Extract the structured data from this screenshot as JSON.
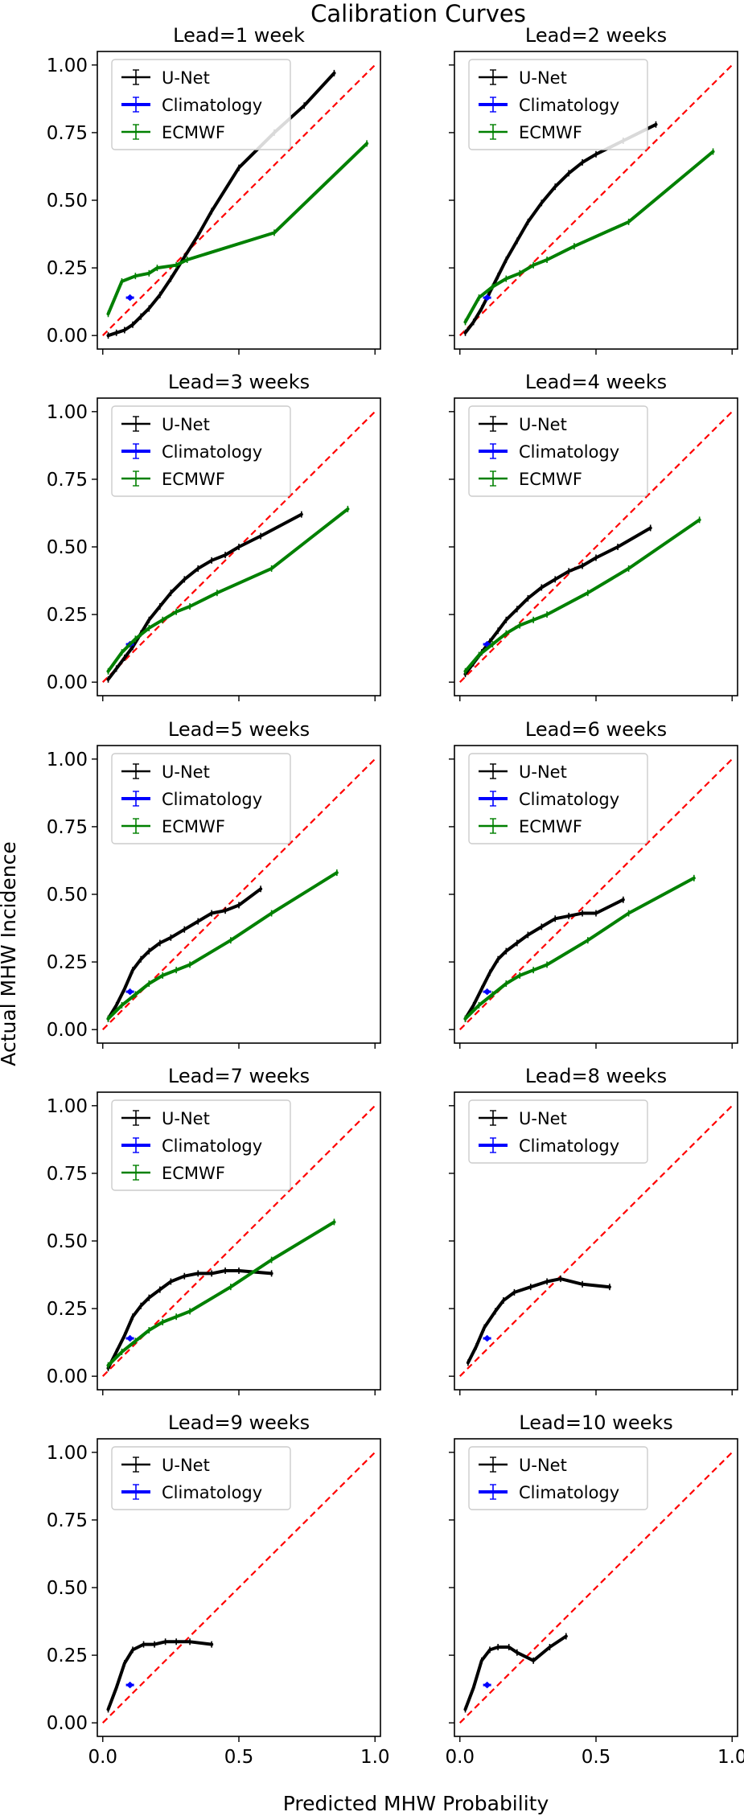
{
  "figure": {
    "suptitle": "Calibration Curves",
    "xlabel": "Predicted MHW Probability",
    "ylabel": "Actual MHW Incidence"
  },
  "colors": {
    "unet": "#000000",
    "climatology": "#0000ff",
    "ecmwf": "#008000",
    "diagonal": "#ff0000"
  },
  "chart_data": [
    {
      "type": "line",
      "title": "Lead=1 week",
      "xlim": [
        -0.02,
        1.02
      ],
      "ylim": [
        -0.05,
        1.05
      ],
      "xticks": [
        "0.0",
        "0.5",
        "1.0"
      ],
      "yticks": [
        "0.00",
        "0.25",
        "0.50",
        "0.75",
        "1.00"
      ],
      "legend": [
        "U-Net",
        "Climatology",
        "ECMWF"
      ],
      "legend_loc": "upper-left",
      "series": [
        {
          "name": "U-Net",
          "x": [
            0.02,
            0.05,
            0.08,
            0.11,
            0.14,
            0.17,
            0.21,
            0.25,
            0.3,
            0.35,
            0.4,
            0.5,
            0.63,
            0.74,
            0.85
          ],
          "y": [
            0.0,
            0.01,
            0.02,
            0.04,
            0.07,
            0.1,
            0.15,
            0.21,
            0.29,
            0.37,
            0.46,
            0.62,
            0.75,
            0.85,
            0.97
          ]
        },
        {
          "name": "Climatology",
          "x": [
            0.1
          ],
          "y": [
            0.14
          ]
        },
        {
          "name": "ECMWF",
          "x": [
            0.02,
            0.07,
            0.12,
            0.17,
            0.2,
            0.27,
            0.31,
            0.63,
            0.97
          ],
          "y": [
            0.08,
            0.2,
            0.22,
            0.23,
            0.25,
            0.26,
            0.28,
            0.38,
            0.71
          ]
        }
      ]
    },
    {
      "type": "line",
      "title": "Lead=2 weeks",
      "xlim": [
        -0.02,
        1.02
      ],
      "ylim": [
        -0.05,
        1.05
      ],
      "xticks": [
        "0.0",
        "0.5",
        "1.0"
      ],
      "yticks": [
        "0.00",
        "0.25",
        "0.50",
        "0.75",
        "1.00"
      ],
      "legend": [
        "U-Net",
        "Climatology",
        "ECMWF"
      ],
      "legend_loc": "upper-left",
      "series": [
        {
          "name": "U-Net",
          "x": [
            0.02,
            0.05,
            0.08,
            0.11,
            0.14,
            0.17,
            0.21,
            0.25,
            0.3,
            0.35,
            0.4,
            0.45,
            0.5,
            0.6,
            0.72
          ],
          "y": [
            0.01,
            0.05,
            0.1,
            0.16,
            0.22,
            0.28,
            0.35,
            0.42,
            0.49,
            0.55,
            0.6,
            0.64,
            0.67,
            0.72,
            0.78
          ]
        },
        {
          "name": "Climatology",
          "x": [
            0.1
          ],
          "y": [
            0.14
          ]
        },
        {
          "name": "ECMWF",
          "x": [
            0.02,
            0.07,
            0.12,
            0.17,
            0.22,
            0.27,
            0.32,
            0.42,
            0.62,
            0.93
          ],
          "y": [
            0.05,
            0.14,
            0.18,
            0.21,
            0.23,
            0.26,
            0.28,
            0.33,
            0.42,
            0.68
          ]
        }
      ]
    },
    {
      "type": "line",
      "title": "Lead=3 weeks",
      "xlim": [
        -0.02,
        1.02
      ],
      "ylim": [
        -0.05,
        1.05
      ],
      "xticks": [
        "0.0",
        "0.5",
        "1.0"
      ],
      "yticks": [
        "0.00",
        "0.25",
        "0.50",
        "0.75",
        "1.00"
      ],
      "legend": [
        "U-Net",
        "Climatology",
        "ECMWF"
      ],
      "legend_loc": "upper-left",
      "series": [
        {
          "name": "U-Net",
          "x": [
            0.02,
            0.05,
            0.08,
            0.11,
            0.14,
            0.17,
            0.21,
            0.25,
            0.3,
            0.35,
            0.4,
            0.45,
            0.5,
            0.58,
            0.73
          ],
          "y": [
            0.01,
            0.05,
            0.09,
            0.13,
            0.18,
            0.23,
            0.28,
            0.33,
            0.38,
            0.42,
            0.45,
            0.47,
            0.5,
            0.54,
            0.62
          ]
        },
        {
          "name": "Climatology",
          "x": [
            0.1
          ],
          "y": [
            0.14
          ]
        },
        {
          "name": "ECMWF",
          "x": [
            0.02,
            0.07,
            0.12,
            0.17,
            0.22,
            0.27,
            0.32,
            0.42,
            0.62,
            0.9
          ],
          "y": [
            0.04,
            0.11,
            0.16,
            0.2,
            0.23,
            0.26,
            0.28,
            0.33,
            0.42,
            0.64
          ]
        }
      ]
    },
    {
      "type": "line",
      "title": "Lead=4 weeks",
      "xlim": [
        -0.02,
        1.02
      ],
      "ylim": [
        -0.05,
        1.05
      ],
      "xticks": [
        "0.0",
        "0.5",
        "1.0"
      ],
      "yticks": [
        "0.00",
        "0.25",
        "0.50",
        "0.75",
        "1.00"
      ],
      "legend": [
        "U-Net",
        "Climatology",
        "ECMWF"
      ],
      "legend_loc": "upper-left",
      "series": [
        {
          "name": "U-Net",
          "x": [
            0.02,
            0.05,
            0.08,
            0.11,
            0.14,
            0.17,
            0.21,
            0.25,
            0.3,
            0.35,
            0.4,
            0.45,
            0.5,
            0.58,
            0.7
          ],
          "y": [
            0.03,
            0.07,
            0.11,
            0.15,
            0.19,
            0.23,
            0.27,
            0.31,
            0.35,
            0.38,
            0.41,
            0.43,
            0.46,
            0.5,
            0.57
          ]
        },
        {
          "name": "Climatology",
          "x": [
            0.1
          ],
          "y": [
            0.14
          ]
        },
        {
          "name": "ECMWF",
          "x": [
            0.02,
            0.07,
            0.12,
            0.17,
            0.22,
            0.27,
            0.32,
            0.47,
            0.62,
            0.88
          ],
          "y": [
            0.04,
            0.1,
            0.14,
            0.18,
            0.21,
            0.23,
            0.25,
            0.33,
            0.42,
            0.6
          ]
        }
      ]
    },
    {
      "type": "line",
      "title": "Lead=5 weeks",
      "xlim": [
        -0.02,
        1.02
      ],
      "ylim": [
        -0.05,
        1.05
      ],
      "xticks": [
        "0.0",
        "0.5",
        "1.0"
      ],
      "yticks": [
        "0.00",
        "0.25",
        "0.50",
        "0.75",
        "1.00"
      ],
      "legend": [
        "U-Net",
        "Climatology",
        "ECMWF"
      ],
      "legend_loc": "upper-left",
      "series": [
        {
          "name": "U-Net",
          "x": [
            0.02,
            0.05,
            0.08,
            0.11,
            0.14,
            0.17,
            0.21,
            0.25,
            0.3,
            0.35,
            0.4,
            0.45,
            0.5,
            0.58
          ],
          "y": [
            0.04,
            0.09,
            0.15,
            0.22,
            0.26,
            0.29,
            0.32,
            0.34,
            0.37,
            0.4,
            0.43,
            0.44,
            0.46,
            0.52
          ]
        },
        {
          "name": "Climatology",
          "x": [
            0.1
          ],
          "y": [
            0.14
          ]
        },
        {
          "name": "ECMWF",
          "x": [
            0.02,
            0.07,
            0.12,
            0.17,
            0.22,
            0.27,
            0.32,
            0.47,
            0.62,
            0.86
          ],
          "y": [
            0.04,
            0.09,
            0.13,
            0.17,
            0.2,
            0.22,
            0.24,
            0.33,
            0.43,
            0.58
          ]
        }
      ]
    },
    {
      "type": "line",
      "title": "Lead=6 weeks",
      "xlim": [
        -0.02,
        1.02
      ],
      "ylim": [
        -0.05,
        1.05
      ],
      "xticks": [
        "0.0",
        "0.5",
        "1.0"
      ],
      "yticks": [
        "0.00",
        "0.25",
        "0.50",
        "0.75",
        "1.00"
      ],
      "legend": [
        "U-Net",
        "Climatology",
        "ECMWF"
      ],
      "legend_loc": "upper-left",
      "series": [
        {
          "name": "U-Net",
          "x": [
            0.02,
            0.05,
            0.08,
            0.11,
            0.14,
            0.17,
            0.21,
            0.25,
            0.3,
            0.35,
            0.4,
            0.45,
            0.5,
            0.6
          ],
          "y": [
            0.04,
            0.09,
            0.15,
            0.21,
            0.26,
            0.29,
            0.32,
            0.35,
            0.38,
            0.41,
            0.42,
            0.43,
            0.43,
            0.48
          ]
        },
        {
          "name": "Climatology",
          "x": [
            0.1
          ],
          "y": [
            0.14
          ]
        },
        {
          "name": "ECMWF",
          "x": [
            0.02,
            0.07,
            0.12,
            0.17,
            0.22,
            0.27,
            0.32,
            0.47,
            0.62,
            0.86
          ],
          "y": [
            0.04,
            0.09,
            0.13,
            0.17,
            0.2,
            0.22,
            0.24,
            0.33,
            0.43,
            0.56
          ]
        }
      ]
    },
    {
      "type": "line",
      "title": "Lead=7 weeks",
      "xlim": [
        -0.02,
        1.02
      ],
      "ylim": [
        -0.05,
        1.05
      ],
      "xticks": [
        "0.0",
        "0.5",
        "1.0"
      ],
      "yticks": [
        "0.00",
        "0.25",
        "0.50",
        "0.75",
        "1.00"
      ],
      "legend": [
        "U-Net",
        "Climatology",
        "ECMWF"
      ],
      "legend_loc": "upper-left",
      "series": [
        {
          "name": "U-Net",
          "x": [
            0.02,
            0.05,
            0.08,
            0.11,
            0.14,
            0.17,
            0.21,
            0.25,
            0.3,
            0.35,
            0.4,
            0.45,
            0.5,
            0.62
          ],
          "y": [
            0.03,
            0.09,
            0.15,
            0.22,
            0.26,
            0.29,
            0.32,
            0.35,
            0.37,
            0.38,
            0.38,
            0.39,
            0.39,
            0.38
          ]
        },
        {
          "name": "Climatology",
          "x": [
            0.1
          ],
          "y": [
            0.14
          ]
        },
        {
          "name": "ECMWF",
          "x": [
            0.02,
            0.07,
            0.12,
            0.17,
            0.22,
            0.27,
            0.32,
            0.47,
            0.62,
            0.85
          ],
          "y": [
            0.04,
            0.09,
            0.13,
            0.17,
            0.2,
            0.22,
            0.24,
            0.33,
            0.43,
            0.57
          ]
        }
      ]
    },
    {
      "type": "line",
      "title": "Lead=8 weeks",
      "xlim": [
        -0.02,
        1.02
      ],
      "ylim": [
        -0.05,
        1.05
      ],
      "xticks": [
        "0.0",
        "0.5",
        "1.0"
      ],
      "yticks": [
        "0.00",
        "0.25",
        "0.50",
        "0.75",
        "1.00"
      ],
      "legend": [
        "U-Net",
        "Climatology"
      ],
      "legend_loc": "upper-left",
      "series": [
        {
          "name": "U-Net",
          "x": [
            0.03,
            0.06,
            0.09,
            0.13,
            0.16,
            0.2,
            0.26,
            0.32,
            0.37,
            0.45,
            0.55
          ],
          "y": [
            0.05,
            0.11,
            0.18,
            0.24,
            0.28,
            0.31,
            0.33,
            0.35,
            0.36,
            0.34,
            0.33
          ]
        },
        {
          "name": "Climatology",
          "x": [
            0.1
          ],
          "y": [
            0.14
          ]
        }
      ]
    },
    {
      "type": "line",
      "title": "Lead=9 weeks",
      "xlim": [
        -0.02,
        1.02
      ],
      "ylim": [
        -0.05,
        1.05
      ],
      "xticks": [
        "0.0",
        "0.5",
        "1.0"
      ],
      "yticks": [
        "0.00",
        "0.25",
        "0.50",
        "0.75",
        "1.00"
      ],
      "legend": [
        "U-Net",
        "Climatology"
      ],
      "legend_loc": "upper-left",
      "series": [
        {
          "name": "U-Net",
          "x": [
            0.02,
            0.05,
            0.08,
            0.11,
            0.15,
            0.19,
            0.23,
            0.27,
            0.32,
            0.4
          ],
          "y": [
            0.05,
            0.13,
            0.22,
            0.27,
            0.29,
            0.29,
            0.3,
            0.3,
            0.3,
            0.29
          ]
        },
        {
          "name": "Climatology",
          "x": [
            0.1
          ],
          "y": [
            0.14
          ]
        }
      ]
    },
    {
      "type": "line",
      "title": "Lead=10 weeks",
      "xlim": [
        -0.02,
        1.02
      ],
      "ylim": [
        -0.05,
        1.05
      ],
      "xticks": [
        "0.0",
        "0.5",
        "1.0"
      ],
      "yticks": [
        "0.00",
        "0.25",
        "0.50",
        "0.75",
        "1.00"
      ],
      "legend": [
        "U-Net",
        "Climatology"
      ],
      "legend_loc": "upper-left",
      "series": [
        {
          "name": "U-Net",
          "x": [
            0.02,
            0.05,
            0.08,
            0.11,
            0.14,
            0.18,
            0.21,
            0.27,
            0.33,
            0.39
          ],
          "y": [
            0.05,
            0.13,
            0.23,
            0.27,
            0.28,
            0.28,
            0.26,
            0.23,
            0.28,
            0.32
          ]
        },
        {
          "name": "Climatology",
          "x": [
            0.1
          ],
          "y": [
            0.14
          ]
        }
      ]
    }
  ]
}
